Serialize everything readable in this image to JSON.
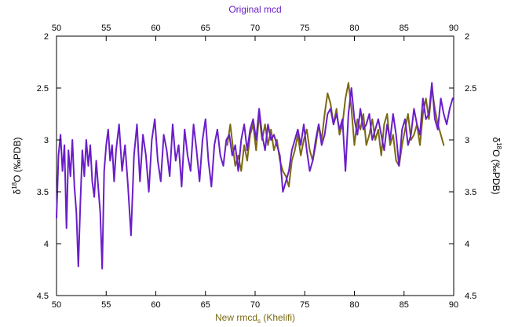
{
  "chart_data": {
    "type": "line",
    "top_xlabel": "Original mcd",
    "bottom_xlabel_main": "New rmcd",
    "bottom_xlabel_sub": "s",
    "bottom_xlabel_tail": " (Khelifi)",
    "ylabel_left": {
      "pre": "δ",
      "sup": "18",
      "post": "O (‰PDB)"
    },
    "ylabel_right": {
      "pre": "δ",
      "sup": "18",
      "post": "O (‰PDB)"
    },
    "xlim": [
      50,
      90
    ],
    "ylim": [
      2,
      4.5
    ],
    "y_inverted": true,
    "grid": false,
    "x_ticks": [
      "50",
      "55",
      "60",
      "65",
      "70",
      "75",
      "80",
      "85",
      "90"
    ],
    "y_ticks": [
      "2",
      "2.5",
      "3",
      "3.5",
      "4",
      "4.5"
    ],
    "colors": {
      "top_axis": "#6a1ec8",
      "bottom_axis": "#7a6a12"
    },
    "series": [
      {
        "color": "#7a6a12",
        "x": [
          67.2,
          67.5,
          67.8,
          68.0,
          68.3,
          68.6,
          68.9,
          69.2,
          69.5,
          69.8,
          70.1,
          70.4,
          70.7,
          71.0,
          71.3,
          71.6,
          71.9,
          72.2,
          72.5,
          72.8,
          73.1,
          73.4,
          73.7,
          74.0,
          74.3,
          74.6,
          74.9,
          75.2,
          75.5,
          75.8,
          76.1,
          76.4,
          76.7,
          77.0,
          77.3,
          77.6,
          77.9,
          78.2,
          78.5,
          78.8,
          79.1,
          79.4,
          79.7,
          80.0,
          80.3,
          80.6,
          80.9,
          81.2,
          81.5,
          81.8,
          82.1,
          82.4,
          82.7,
          83.0,
          83.3,
          83.6,
          83.9,
          84.2,
          84.5,
          84.8,
          85.1,
          85.4,
          85.7,
          86.0,
          86.3,
          86.6,
          86.9,
          87.2,
          87.5,
          87.8,
          88.1,
          88.4,
          88.7,
          89.0
        ],
        "y": [
          3.05,
          2.85,
          3.1,
          3.25,
          3.15,
          3.3,
          3.05,
          3.2,
          2.95,
          2.85,
          3.1,
          2.75,
          3.0,
          2.85,
          3.05,
          2.9,
          3.1,
          3.0,
          3.2,
          3.3,
          3.35,
          3.45,
          3.2,
          3.1,
          2.95,
          3.15,
          3.0,
          2.9,
          3.1,
          3.2,
          3.05,
          2.85,
          3.0,
          2.75,
          2.55,
          2.65,
          2.85,
          2.7,
          2.95,
          2.85,
          2.6,
          2.45,
          2.7,
          3.05,
          2.8,
          2.9,
          2.75,
          3.05,
          2.95,
          2.8,
          3.0,
          2.9,
          3.15,
          2.85,
          2.75,
          3.05,
          2.95,
          3.2,
          3.25,
          3.05,
          2.9,
          2.75,
          3.0,
          2.95,
          2.85,
          3.05,
          2.75,
          2.6,
          2.8,
          2.5,
          2.7,
          2.85,
          2.95,
          3.05
        ]
      },
      {
        "color": "#6a1ec8",
        "x": [
          50.0,
          50.2,
          50.4,
          50.6,
          50.8,
          51.0,
          51.2,
          51.4,
          51.6,
          51.8,
          52.0,
          52.2,
          52.4,
          52.6,
          52.8,
          53.0,
          53.2,
          53.4,
          53.6,
          53.8,
          54.0,
          54.2,
          54.4,
          54.6,
          54.8,
          55.0,
          55.2,
          55.4,
          55.6,
          55.8,
          56.0,
          56.3,
          56.6,
          56.9,
          57.2,
          57.5,
          57.8,
          58.1,
          58.4,
          58.7,
          59.0,
          59.3,
          59.6,
          59.9,
          60.2,
          60.5,
          60.8,
          61.1,
          61.4,
          61.7,
          62.0,
          62.3,
          62.6,
          62.9,
          63.2,
          63.5,
          63.8,
          64.1,
          64.4,
          64.7,
          65.0,
          65.3,
          65.6,
          65.9,
          66.2,
          66.5,
          66.8,
          67.1,
          67.4,
          67.7,
          68.0,
          68.3,
          68.6,
          68.9,
          69.2,
          69.5,
          69.8,
          70.1,
          70.4,
          70.7,
          71.0,
          71.3,
          71.6,
          71.9,
          72.2,
          72.5,
          72.8,
          73.1,
          73.4,
          73.7,
          74.0,
          74.3,
          74.6,
          74.9,
          75.2,
          75.5,
          75.8,
          76.1,
          76.4,
          76.7,
          77.0,
          77.3,
          77.6,
          77.9,
          78.2,
          78.5,
          78.8,
          79.1,
          79.4,
          79.7,
          80.0,
          80.3,
          80.6,
          80.9,
          81.2,
          81.5,
          81.8,
          82.1,
          82.4,
          82.7,
          83.0,
          83.3,
          83.6,
          83.9,
          84.2,
          84.5,
          84.8,
          85.1,
          85.4,
          85.7,
          86.0,
          86.3,
          86.6,
          86.9,
          87.2,
          87.5,
          87.8,
          88.1,
          88.4,
          88.7,
          89.0,
          89.3,
          89.6,
          89.9
        ],
        "y": [
          3.75,
          3.15,
          2.95,
          3.3,
          3.05,
          3.85,
          3.1,
          3.35,
          3.0,
          3.45,
          3.7,
          4.22,
          3.6,
          3.1,
          3.35,
          3.0,
          3.25,
          3.05,
          3.4,
          3.55,
          3.2,
          3.45,
          3.7,
          4.24,
          3.3,
          3.05,
          2.9,
          3.2,
          3.05,
          3.4,
          3.1,
          2.85,
          3.3,
          3.05,
          3.45,
          3.92,
          3.15,
          2.85,
          3.4,
          2.95,
          3.15,
          3.5,
          3.0,
          2.8,
          3.2,
          3.4,
          2.95,
          3.1,
          3.35,
          2.85,
          3.2,
          3.05,
          3.45,
          2.9,
          3.15,
          3.3,
          2.85,
          3.1,
          3.4,
          3.0,
          2.8,
          3.2,
          3.45,
          3.05,
          2.9,
          3.15,
          3.25,
          3.0,
          2.95,
          3.15,
          3.05,
          3.3,
          3.0,
          2.85,
          3.1,
          2.9,
          2.8,
          3.0,
          2.7,
          2.95,
          3.1,
          2.85,
          3.0,
          2.95,
          3.05,
          3.15,
          3.5,
          3.4,
          3.3,
          3.1,
          3.0,
          2.9,
          3.05,
          2.85,
          3.1,
          3.3,
          3.2,
          3.0,
          2.85,
          3.05,
          2.95,
          2.75,
          2.7,
          2.85,
          2.75,
          2.9,
          2.8,
          3.3,
          2.75,
          2.5,
          2.8,
          2.95,
          2.7,
          2.9,
          2.85,
          2.75,
          3.0,
          2.9,
          2.8,
          2.95,
          3.1,
          2.85,
          3.0,
          2.75,
          2.95,
          3.25,
          2.9,
          2.8,
          3.05,
          2.95,
          2.7,
          2.85,
          2.95,
          2.6,
          2.8,
          2.75,
          2.45,
          2.8,
          2.9,
          2.6,
          2.75,
          2.85,
          2.7,
          2.6
        ]
      }
    ]
  }
}
